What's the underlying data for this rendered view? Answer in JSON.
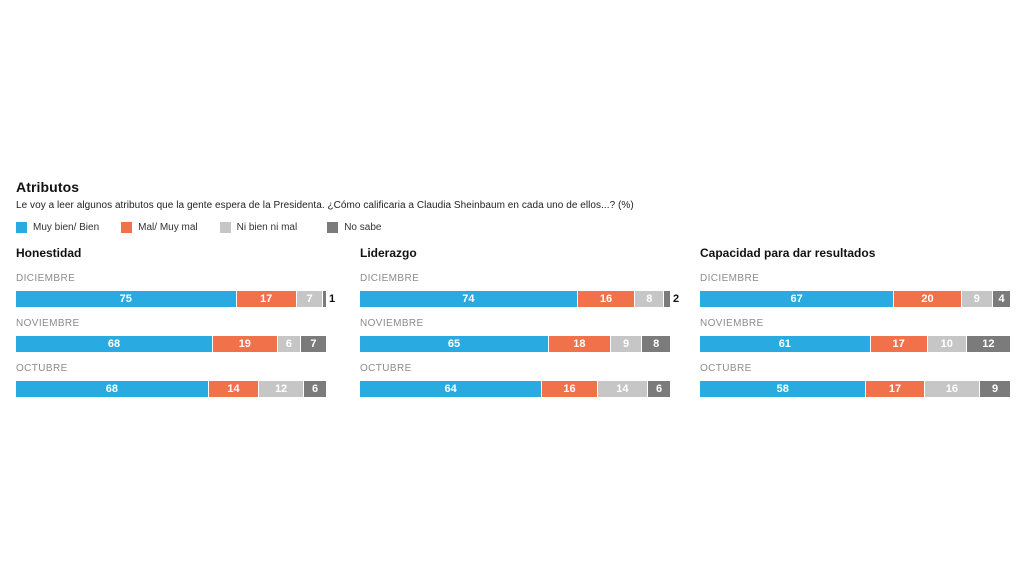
{
  "header": {
    "title": "Atributos",
    "subtitle": "Le voy a leer algunos atributos que la gente espera de la Presidenta. ¿Cómo calificaria a Claudia Sheinbaum en cada uno de ellos...?  (%)"
  },
  "legend": [
    {
      "label": "Muy bien/ Bien",
      "color": "#29ABE2"
    },
    {
      "label": "Mal/ Muy mal",
      "color": "#F0714A"
    },
    {
      "label": "Ni bien ni mal",
      "color": "#C6C6C6"
    },
    {
      "label": "No sabe",
      "color": "#7B7B7B"
    }
  ],
  "chart_data": {
    "type": "bar",
    "orientation": "horizontal-stacked",
    "unit": "%",
    "xlim": [
      0,
      100
    ],
    "grid": false,
    "legend_position": "top",
    "series_names": [
      "Muy bien/ Bien",
      "Mal/ Muy mal",
      "Ni bien ni mal",
      "No sabe"
    ],
    "colors": [
      "#29ABE2",
      "#F0714A",
      "#C6C6C6",
      "#7B7B7B"
    ],
    "groups": [
      {
        "title": "Honestidad",
        "categories": [
          "DICIEMBRE",
          "NOVIEMBRE",
          "OCTUBRE"
        ],
        "rows": [
          [
            75,
            17,
            7,
            1
          ],
          [
            68,
            19,
            6,
            7
          ],
          [
            68,
            14,
            12,
            6
          ]
        ]
      },
      {
        "title": "Liderazgo",
        "categories": [
          "DICIEMBRE",
          "NOVIEMBRE",
          "OCTUBRE"
        ],
        "rows": [
          [
            74,
            16,
            8,
            2
          ],
          [
            65,
            18,
            9,
            8
          ],
          [
            64,
            16,
            14,
            6
          ]
        ]
      },
      {
        "title": "Capacidad para dar resultados",
        "categories": [
          "DICIEMBRE",
          "NOVIEMBRE",
          "OCTUBRE"
        ],
        "rows": [
          [
            67,
            20,
            9,
            4
          ],
          [
            61,
            17,
            10,
            12
          ],
          [
            58,
            17,
            16,
            9
          ]
        ]
      }
    ]
  }
}
